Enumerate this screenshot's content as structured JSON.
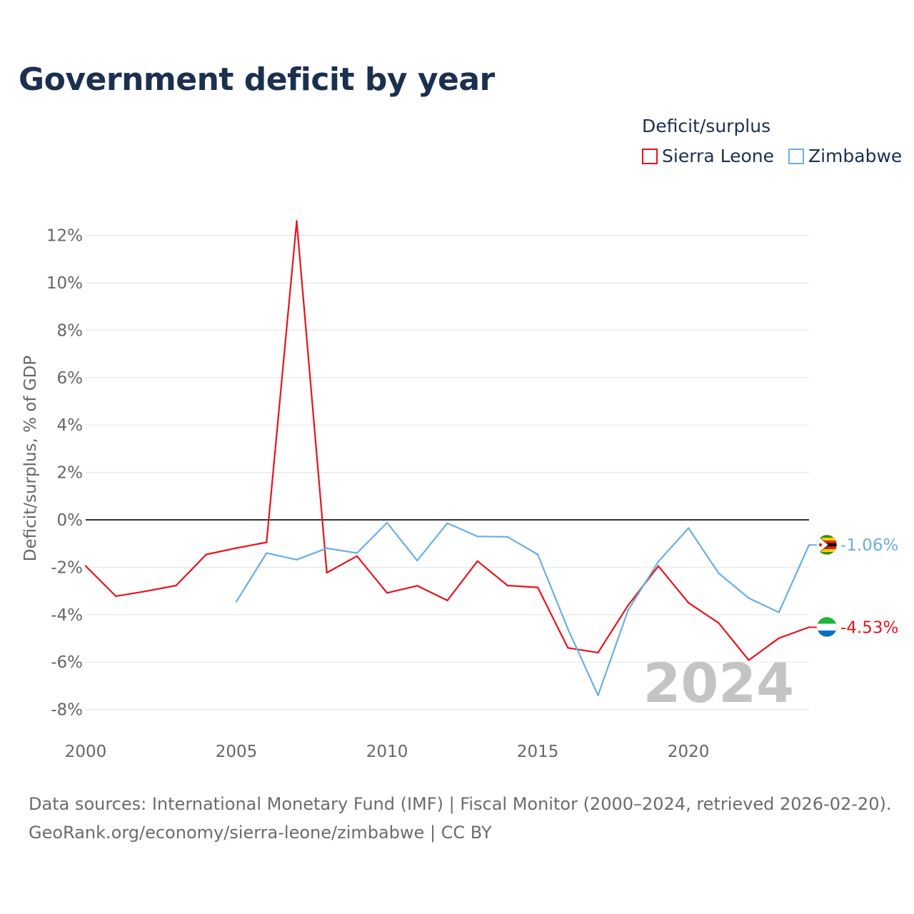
{
  "title": "Government deficit by year",
  "legend": {
    "title": "Deficit/surplus",
    "items": [
      {
        "label": "Sierra Leone",
        "color": "#e8131b"
      },
      {
        "label": "Zimbabwe",
        "color": "#6aaee6"
      }
    ]
  },
  "footer": {
    "line1": "Data sources: International Monetary Fund (IMF) | Fiscal Monitor (2000–2024, retrieved 2026-02-20).",
    "line2": "GeoRank.org/economy/sierra-leone/zimbabwe | CC BY"
  },
  "chart_data": {
    "type": "line",
    "title": "Government deficit by year",
    "ylabel": "Deficit/surplus, % of GDP",
    "xlabel": "",
    "year_watermark": "2024",
    "xlim": [
      2000,
      2024
    ],
    "ylim": [
      -9,
      13
    ],
    "x_ticks": [
      2000,
      2005,
      2010,
      2015,
      2020
    ],
    "x_tick_labels": [
      "2000",
      "2005",
      "2010",
      "2015",
      "2020"
    ],
    "y_ticks": [
      12,
      10,
      8,
      6,
      4,
      2,
      0,
      -2,
      -4,
      -6,
      -8
    ],
    "y_tick_labels": [
      "12%",
      "10%",
      "8%",
      "6%",
      "4%",
      "2%",
      "0%",
      "-2%",
      "-4%",
      "-6%",
      "-8%"
    ],
    "grid": true,
    "series": [
      {
        "name": "Sierra Leone",
        "color": "#e8131b",
        "end_label": "-4.53%",
        "x": [
          2000,
          2001,
          2002,
          2003,
          2004,
          2005,
          2006,
          2007,
          2008,
          2009,
          2010,
          2011,
          2012,
          2013,
          2014,
          2015,
          2016,
          2017,
          2018,
          2019,
          2020,
          2021,
          2022,
          2023,
          2024
        ],
        "values": [
          -1.95,
          -3.22,
          -3.01,
          -2.77,
          -1.46,
          -1.19,
          -0.95,
          12.6,
          -2.23,
          -1.53,
          -3.08,
          -2.78,
          -3.4,
          -1.74,
          -2.77,
          -2.85,
          -5.4,
          -5.6,
          -3.6,
          -1.95,
          -3.5,
          -4.35,
          -5.92,
          -4.99,
          -4.53
        ]
      },
      {
        "name": "Zimbabwe",
        "color": "#6aaee6",
        "end_label": "-1.06%",
        "x": [
          2005,
          2006,
          2007,
          2008,
          2009,
          2010,
          2011,
          2012,
          2013,
          2014,
          2015,
          2016,
          2017,
          2018,
          2019,
          2020,
          2021,
          2022,
          2023,
          2024
        ],
        "values": [
          -3.45,
          -1.4,
          -1.68,
          -1.2,
          -1.4,
          -0.12,
          -1.72,
          -0.14,
          -0.7,
          -0.72,
          -1.46,
          -4.6,
          -7.4,
          -3.8,
          -1.76,
          -0.35,
          -2.25,
          -3.3,
          -3.9,
          -1.06
        ]
      }
    ]
  }
}
